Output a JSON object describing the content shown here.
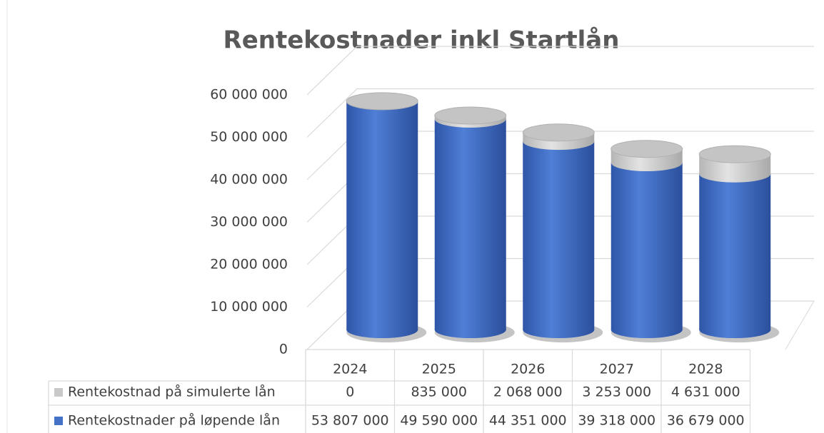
{
  "chart_data": {
    "type": "cylinder_stacked",
    "title": "Rentekostnader inkl Startlån",
    "categories": [
      "2024",
      "2025",
      "2026",
      "2027",
      "2028"
    ],
    "series": [
      {
        "name": "Rentekostnad på simulerte lån",
        "color": "#c9c9c9",
        "values": [
          0,
          835000,
          2068000,
          3253000,
          4631000
        ],
        "value_labels": [
          "0",
          "835 000",
          "2 068 000",
          "3 253 000",
          "4 631 000"
        ]
      },
      {
        "name": "Rentekostnader på løpende lån",
        "color": "#4472c4",
        "values": [
          53807000,
          49590000,
          44351000,
          39318000,
          36679000
        ],
        "value_labels": [
          "53 807 000",
          "49 590 000",
          "44 351 000",
          "39 318 000",
          "36 679 000"
        ]
      }
    ],
    "stack_order": [
      1,
      0
    ],
    "ylim": [
      0,
      60000000
    ],
    "yticks": [
      0,
      {
        "value": 10000000,
        "label": "10 000 000"
      },
      {
        "value": 20000000,
        "label": "20 000 000"
      },
      {
        "value": 30000000,
        "label": "30 000 000"
      },
      {
        "value": 40000000,
        "label": "40 000 000"
      },
      {
        "value": 50000000,
        "label": "50 000 000"
      },
      {
        "value": 60000000,
        "label": "60 000 000"
      }
    ],
    "grid": true,
    "data_table": true
  }
}
